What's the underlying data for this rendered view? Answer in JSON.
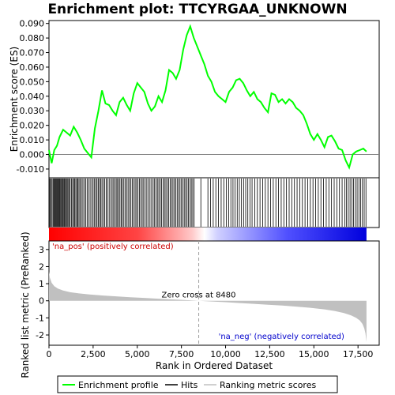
{
  "chart_data": {
    "type": "line",
    "title": "Enrichment plot: TTCYRGAA_UNKNOWN",
    "xlabel": "Rank in Ordered Dataset",
    "xlim": [
      0,
      18700
    ],
    "xticks": [
      0,
      2500,
      5000,
      7500,
      10000,
      12500,
      15000,
      17500
    ],
    "xtick_labels": [
      "0",
      "2,500",
      "5,000",
      "7,500",
      "10,000",
      "12,500",
      "15,000",
      "17,500"
    ],
    "es_panel": {
      "ylabel": "Enrichment score (ES)",
      "ylim": [
        -0.016,
        0.092
      ],
      "yticks": [
        -0.01,
        0.0,
        0.01,
        0.02,
        0.03,
        0.04,
        0.05,
        0.06,
        0.07,
        0.08,
        0.09
      ],
      "ytick_labels": [
        "-0.010",
        "0.000",
        "0.010",
        "0.020",
        "0.030",
        "0.040",
        "0.050",
        "0.060",
        "0.070",
        "0.080",
        "0.090"
      ],
      "series": [
        {
          "name": "Enrichment profile",
          "color": "#00ff00",
          "x": [
            0,
            150,
            300,
            450,
            600,
            800,
            1000,
            1200,
            1400,
            1600,
            1800,
            2000,
            2200,
            2400,
            2600,
            2800,
            3000,
            3200,
            3400,
            3600,
            3800,
            4000,
            4200,
            4400,
            4600,
            4800,
            5000,
            5200,
            5400,
            5600,
            5800,
            6000,
            6200,
            6400,
            6600,
            6800,
            7000,
            7200,
            7400,
            7600,
            7800,
            8000,
            8200,
            8400,
            8600,
            8800,
            9000,
            9200,
            9400,
            9600,
            9800,
            10000,
            10200,
            10400,
            10600,
            10800,
            11000,
            11200,
            11400,
            11600,
            11800,
            12000,
            12200,
            12400,
            12600,
            12800,
            13000,
            13200,
            13400,
            13600,
            13800,
            14000,
            14200,
            14400,
            14600,
            14800,
            15000,
            15200,
            15400,
            15600,
            15800,
            16000,
            16200,
            16400,
            16600,
            16800,
            17000,
            17200,
            17400,
            17600,
            17800,
            17980
          ],
          "y": [
            0.003,
            -0.006,
            0.003,
            0.006,
            0.012,
            0.017,
            0.015,
            0.013,
            0.019,
            0.015,
            0.01,
            0.004,
            0.001,
            -0.002,
            0.018,
            0.03,
            0.044,
            0.035,
            0.034,
            0.03,
            0.027,
            0.036,
            0.039,
            0.034,
            0.03,
            0.042,
            0.049,
            0.046,
            0.043,
            0.035,
            0.03,
            0.033,
            0.04,
            0.036,
            0.044,
            0.058,
            0.056,
            0.052,
            0.058,
            0.072,
            0.082,
            0.088,
            0.08,
            0.074,
            0.068,
            0.062,
            0.054,
            0.05,
            0.043,
            0.04,
            0.038,
            0.036,
            0.043,
            0.046,
            0.051,
            0.052,
            0.049,
            0.044,
            0.04,
            0.043,
            0.038,
            0.036,
            0.032,
            0.029,
            0.042,
            0.041,
            0.036,
            0.038,
            0.035,
            0.038,
            0.036,
            0.032,
            0.03,
            0.027,
            0.021,
            0.014,
            0.01,
            0.014,
            0.01,
            0.005,
            0.012,
            0.013,
            0.009,
            0.004,
            0.003,
            -0.004,
            -0.009,
            0.0,
            0.002,
            0.003,
            0.004,
            0.002
          ]
        }
      ]
    },
    "hits_panel": {
      "legend_name": "Hits",
      "hit_ranks": [
        20,
        70,
        130,
        180,
        240,
        290,
        340,
        380,
        420,
        470,
        510,
        560,
        600,
        640,
        700,
        750,
        790,
        840,
        880,
        930,
        980,
        1030,
        1080,
        1140,
        1200,
        1270,
        1340,
        1400,
        1460,
        1520,
        1580,
        1640,
        1700,
        1760,
        1840,
        1920,
        2000,
        2080,
        2160,
        2240,
        2330,
        2420,
        2500,
        2580,
        2650,
        2720,
        2790,
        2860,
        2930,
        3000,
        3080,
        3160,
        3240,
        3320,
        3410,
        3500,
        3580,
        3660,
        3740,
        3810,
        3880,
        3950,
        4020,
        4090,
        4160,
        4240,
        4320,
        4400,
        4480,
        4560,
        4640,
        4720,
        4800,
        4880,
        4960,
        5040,
        5120,
        5200,
        5280,
        5360,
        5450,
        5540,
        5630,
        5720,
        5810,
        5900,
        5980,
        6060,
        6140,
        6220,
        6300,
        6380,
        6460,
        6540,
        6620,
        6700,
        6780,
        6860,
        6940,
        7020,
        7100,
        7180,
        7260,
        7340,
        7420,
        7500,
        7580,
        7660,
        7740,
        7820,
        7900,
        7980,
        8060,
        8140,
        8220,
        8600,
        9000,
        9150,
        9300,
        9450,
        9600,
        9750,
        9900,
        10050,
        10180,
        10300,
        10420,
        10540,
        10660,
        10780,
        10900,
        11020,
        11140,
        11260,
        11380,
        11500,
        11650,
        11800,
        11950,
        12100,
        12250,
        12400,
        12550,
        12700,
        12850,
        13000,
        13150,
        13300,
        13450,
        13600,
        13750,
        13900,
        14050,
        14200,
        14350,
        14500,
        14650,
        14800,
        14950,
        15100,
        15250,
        15400,
        15550,
        15700,
        15850,
        16000,
        16150,
        16300,
        16450,
        16600,
        16750,
        16850,
        16950,
        17050,
        17150,
        17250,
        17350,
        17450,
        17550,
        17650,
        17750,
        17850,
        17950
      ]
    },
    "rank_panel": {
      "ylabel": "Ranked list metric (PreRanked)",
      "ylim": [
        -2.6,
        3.5
      ],
      "yticks": [
        -2,
        -1,
        0,
        1,
        2,
        3
      ],
      "ytick_labels": [
        "-2",
        "-1",
        "0",
        "1",
        "2",
        "3"
      ],
      "legend_name": "Ranking metric scores",
      "x": [
        0,
        50,
        150,
        300,
        500,
        800,
        1200,
        1700,
        2300,
        3000,
        3800,
        4600,
        5400,
        6200,
        7000,
        7800,
        8480,
        9200,
        10000,
        10800,
        11600,
        12400,
        13200,
        14000,
        14800,
        15600,
        16200,
        16700,
        17100,
        17400,
        17600,
        17750,
        17850,
        17920,
        17980
      ],
      "y": [
        1.7,
        1.35,
        1.05,
        0.85,
        0.72,
        0.6,
        0.5,
        0.43,
        0.37,
        0.31,
        0.26,
        0.21,
        0.17,
        0.12,
        0.08,
        0.04,
        0.0,
        -0.04,
        -0.08,
        -0.13,
        -0.18,
        -0.23,
        -0.28,
        -0.34,
        -0.41,
        -0.5,
        -0.6,
        -0.72,
        -0.85,
        -1.0,
        -1.15,
        -1.35,
        -1.6,
        -1.9,
        -2.4
      ],
      "zero_cross_label": "Zero cross at 8480",
      "zero_cross": 8480,
      "pos_label": "'na_pos' (positively correlated)",
      "neg_label": "'na_neg' (negatively correlated)"
    },
    "legend": {
      "placement": "bottom",
      "items": [
        {
          "label": "Enrichment profile",
          "color": "#00ff00"
        },
        {
          "label": "Hits",
          "color": "#000000"
        },
        {
          "label": "Ranking metric scores",
          "color": "#c0c0c0"
        }
      ]
    },
    "colors": {
      "profile": "#00ff00",
      "pos_text": "#cc0000",
      "neg_text": "#0000cc",
      "metric_fill": "#c0c0c0",
      "zero_line": "#a0a0a0"
    }
  }
}
